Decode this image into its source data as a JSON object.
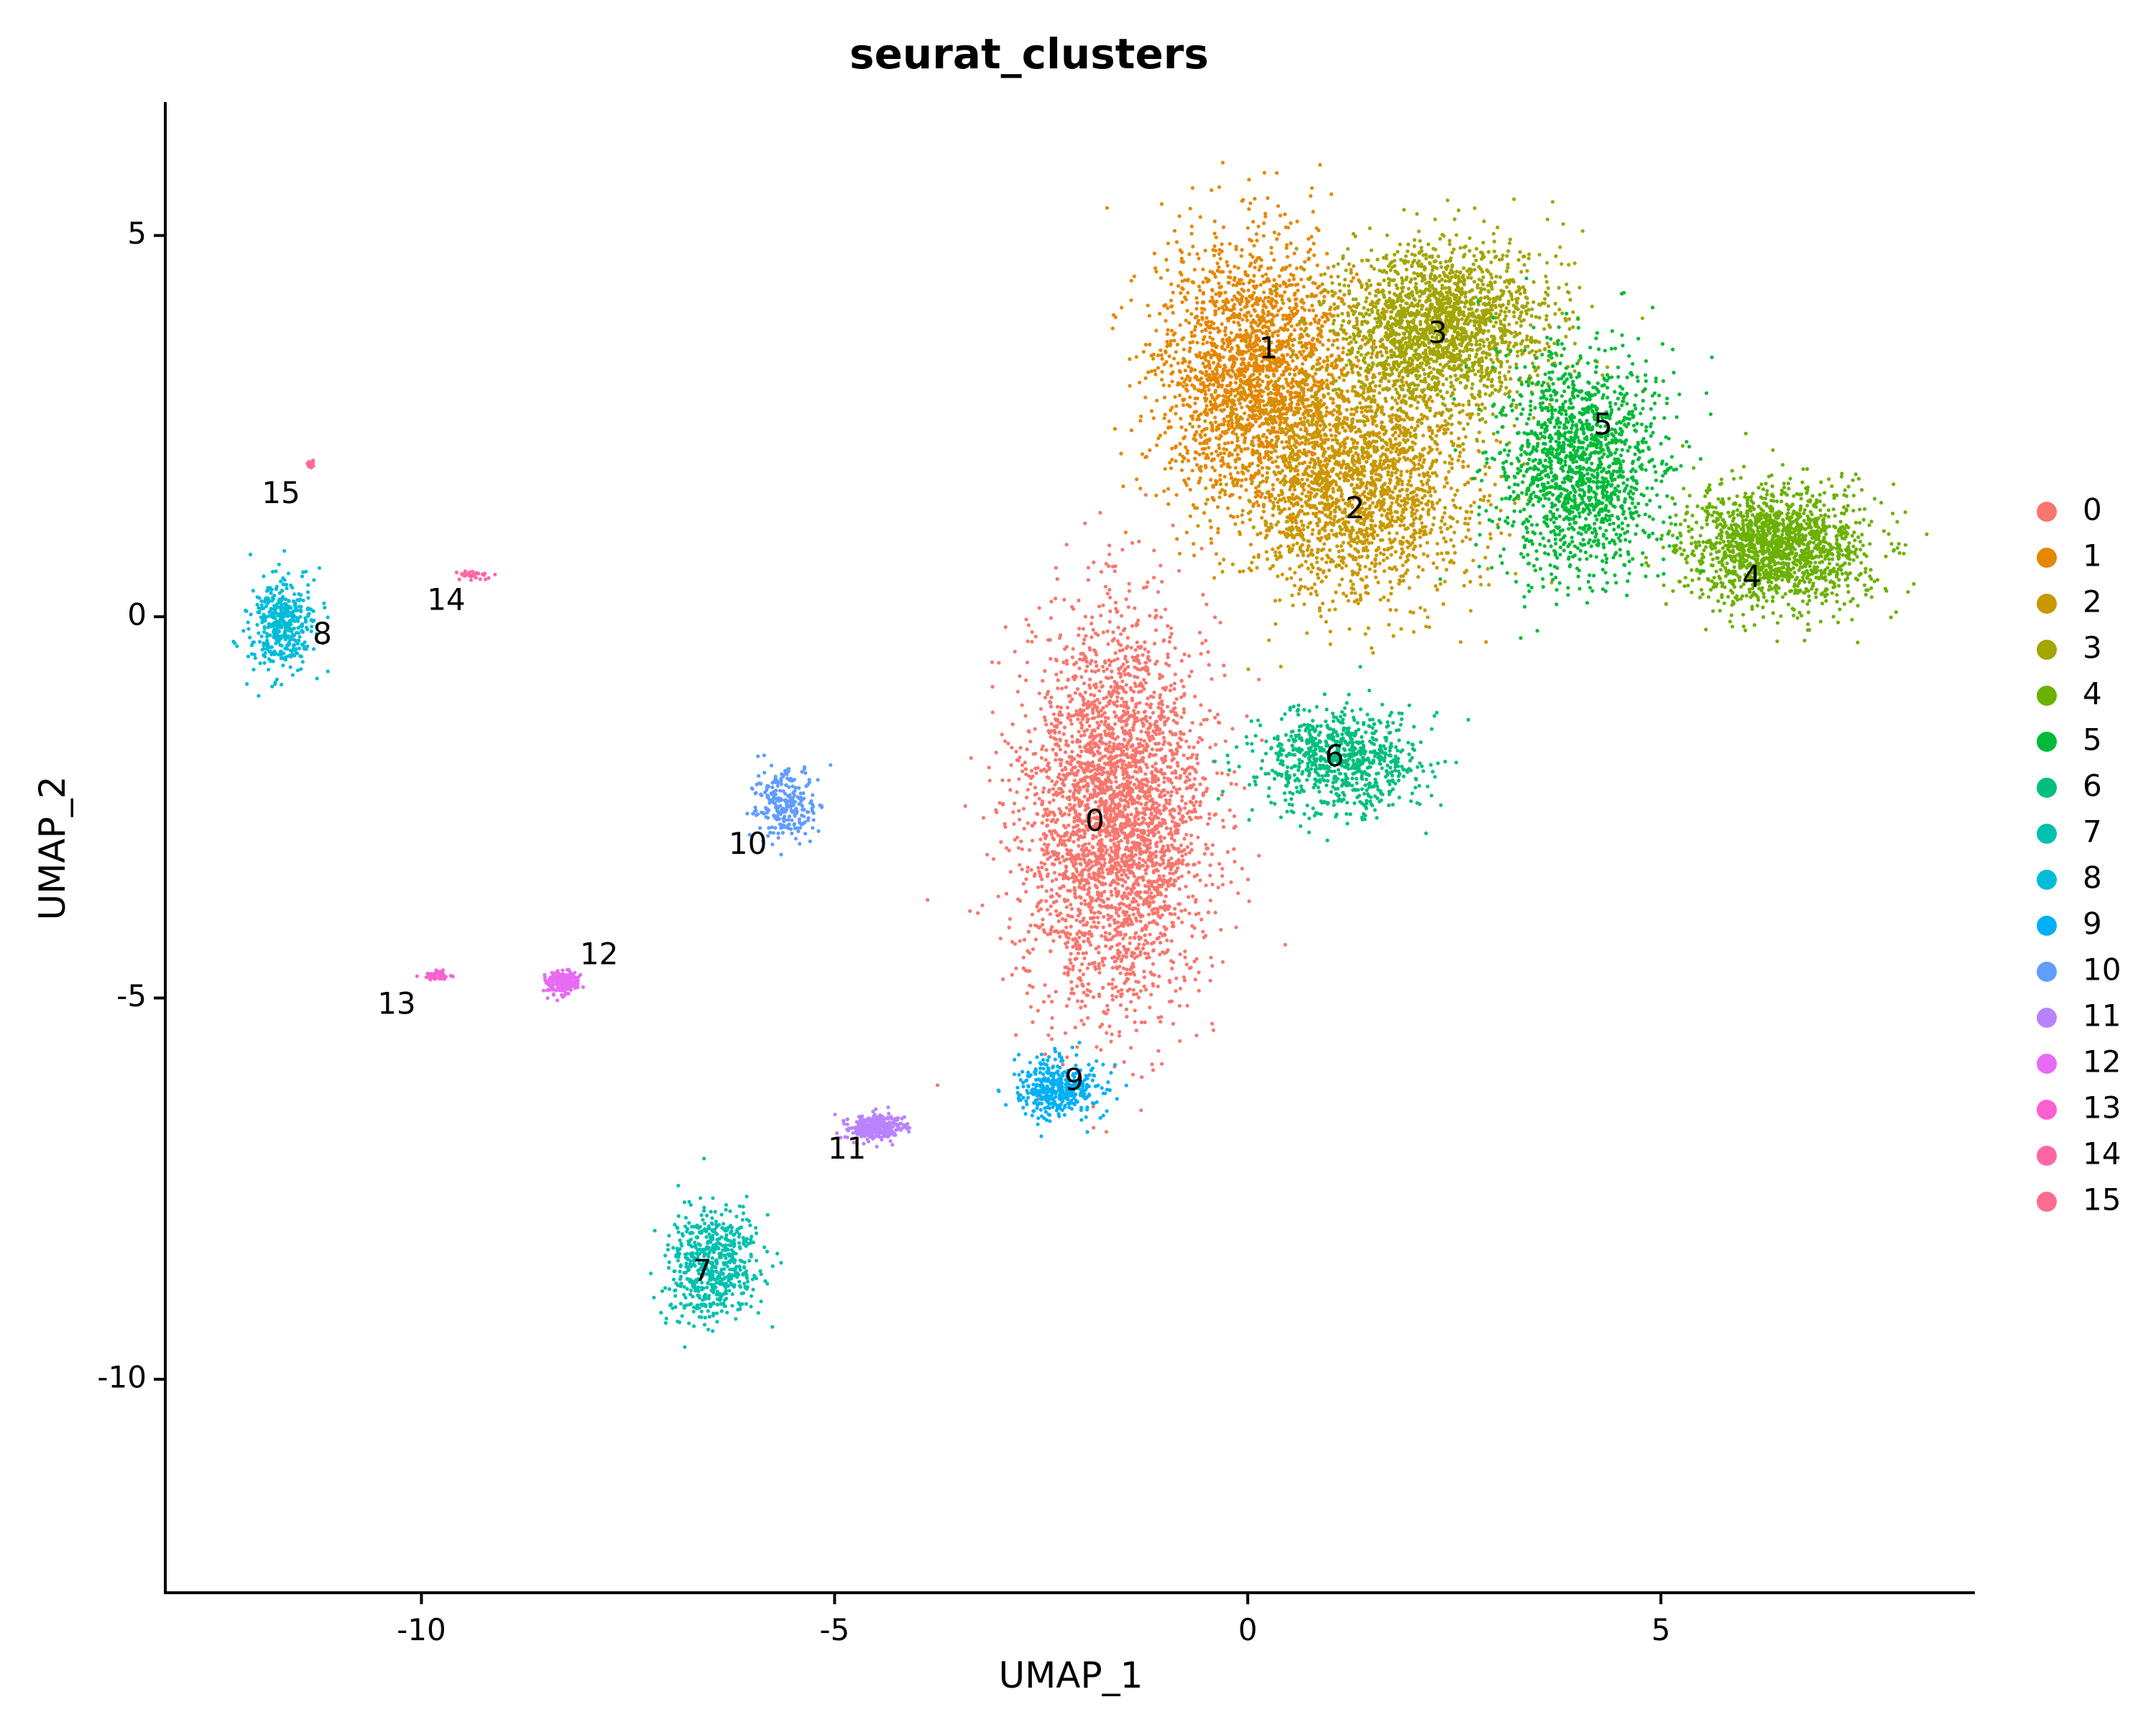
{
  "chart_data": {
    "type": "scatter",
    "title": "seurat_clusters",
    "xlabel": "UMAP_1",
    "ylabel": "UMAP_2",
    "xlim": [
      -13.1,
      8.8
    ],
    "ylim": [
      -12.8,
      6.75
    ],
    "xticks": [
      -10,
      -5,
      0,
      5
    ],
    "xtick_labels": [
      "-10",
      "-5",
      "0",
      "5"
    ],
    "yticks": [
      -10,
      -5,
      0,
      5
    ],
    "ytick_labels": [
      "-10",
      "-5",
      "0",
      "5"
    ],
    "grid": false,
    "legend_position": "right",
    "legend": [
      {
        "label": "0",
        "color": "#F8766D"
      },
      {
        "label": "1",
        "color": "#E58700"
      },
      {
        "label": "2",
        "color": "#C99800"
      },
      {
        "label": "3",
        "color": "#A3A500"
      },
      {
        "label": "4",
        "color": "#6BB100"
      },
      {
        "label": "5",
        "color": "#00BA38"
      },
      {
        "label": "6",
        "color": "#00BF7D"
      },
      {
        "label": "7",
        "color": "#00C0AF"
      },
      {
        "label": "8",
        "color": "#00BCD8"
      },
      {
        "label": "9",
        "color": "#00B0F6"
      },
      {
        "label": "10",
        "color": "#619CFF"
      },
      {
        "label": "11",
        "color": "#B983FF"
      },
      {
        "label": "12",
        "color": "#E76BF3"
      },
      {
        "label": "13",
        "color": "#FD61D1"
      },
      {
        "label": "14",
        "color": "#FF67A4"
      },
      {
        "label": "15",
        "color": "#FF6C91"
      }
    ],
    "clusters": [
      {
        "label": "0",
        "color": "#F8766D",
        "label_x": -1.85,
        "label_y": -2.7,
        "center_x": -1.6,
        "center_y": -2.6,
        "spread_x": 1.0,
        "spread_y": 2.3,
        "n": 3300
      },
      {
        "label": "1",
        "color": "#E58700",
        "label_x": 0.25,
        "label_y": 3.5,
        "center_x": 0.1,
        "center_y": 3.2,
        "spread_x": 1.1,
        "spread_y": 1.6,
        "n": 2200
      },
      {
        "label": "2",
        "color": "#C99800",
        "label_x": 1.3,
        "label_y": 1.4,
        "center_x": 1.3,
        "center_y": 1.8,
        "spread_x": 1.3,
        "spread_y": 1.4,
        "n": 2100
      },
      {
        "label": "3",
        "color": "#A3A500",
        "label_x": 2.3,
        "label_y": 3.7,
        "center_x": 2.3,
        "center_y": 3.8,
        "spread_x": 1.2,
        "spread_y": 1.0,
        "n": 1900
      },
      {
        "label": "4",
        "color": "#6BB100",
        "label_x": 6.1,
        "label_y": 0.5,
        "center_x": 6.4,
        "center_y": 0.9,
        "spread_x": 1.0,
        "spread_y": 0.7,
        "n": 1600
      },
      {
        "label": "5",
        "color": "#00BA38",
        "label_x": 4.3,
        "label_y": 2.5,
        "center_x": 4.0,
        "center_y": 2.0,
        "spread_x": 0.9,
        "spread_y": 1.3,
        "n": 1500
      },
      {
        "label": "6",
        "color": "#00BF7D",
        "label_x": 1.05,
        "label_y": -1.85,
        "center_x": 1.1,
        "center_y": -1.9,
        "spread_x": 0.9,
        "spread_y": 0.6,
        "n": 800
      },
      {
        "label": "7",
        "color": "#00C0AF",
        "label_x": -6.6,
        "label_y": -8.6,
        "center_x": -6.5,
        "center_y": -8.5,
        "spread_x": 0.5,
        "spread_y": 0.7,
        "n": 600
      },
      {
        "label": "8",
        "color": "#00BCD8",
        "label_x": -11.2,
        "label_y": -0.25,
        "center_x": -11.7,
        "center_y": -0.1,
        "spread_x": 0.35,
        "spread_y": 0.55,
        "n": 420
      },
      {
        "label": "9",
        "color": "#00B0F6",
        "label_x": -2.1,
        "label_y": -6.1,
        "center_x": -2.3,
        "center_y": -6.2,
        "spread_x": 0.45,
        "spread_y": 0.35,
        "n": 420
      },
      {
        "label": "10",
        "color": "#619CFF",
        "label_x": -6.05,
        "label_y": -3.0,
        "center_x": -5.6,
        "center_y": -2.5,
        "spread_x": 0.35,
        "spread_y": 0.45,
        "n": 260
      },
      {
        "label": "11",
        "color": "#B983FF",
        "label_x": -4.85,
        "label_y": -7.0,
        "center_x": -4.5,
        "center_y": -6.7,
        "spread_x": 0.3,
        "spread_y": 0.15,
        "n": 320
      },
      {
        "label": "12",
        "color": "#E76BF3",
        "label_x": -7.85,
        "label_y": -4.45,
        "center_x": -8.3,
        "center_y": -4.8,
        "spread_x": 0.18,
        "spread_y": 0.14,
        "n": 200
      },
      {
        "label": "13",
        "color": "#FD61D1",
        "label_x": -10.3,
        "label_y": -5.1,
        "center_x": -9.8,
        "center_y": -4.7,
        "spread_x": 0.16,
        "spread_y": 0.06,
        "n": 45
      },
      {
        "label": "14",
        "color": "#FF67A4",
        "label_x": -9.7,
        "label_y": 0.2,
        "center_x": -9.35,
        "center_y": 0.55,
        "spread_x": 0.15,
        "spread_y": 0.05,
        "n": 35
      },
      {
        "label": "15",
        "color": "#FF6C91",
        "label_x": -11.7,
        "label_y": 1.6,
        "center_x": -11.35,
        "center_y": 2.0,
        "spread_x": 0.04,
        "spread_y": 0.05,
        "n": 14
      }
    ]
  }
}
